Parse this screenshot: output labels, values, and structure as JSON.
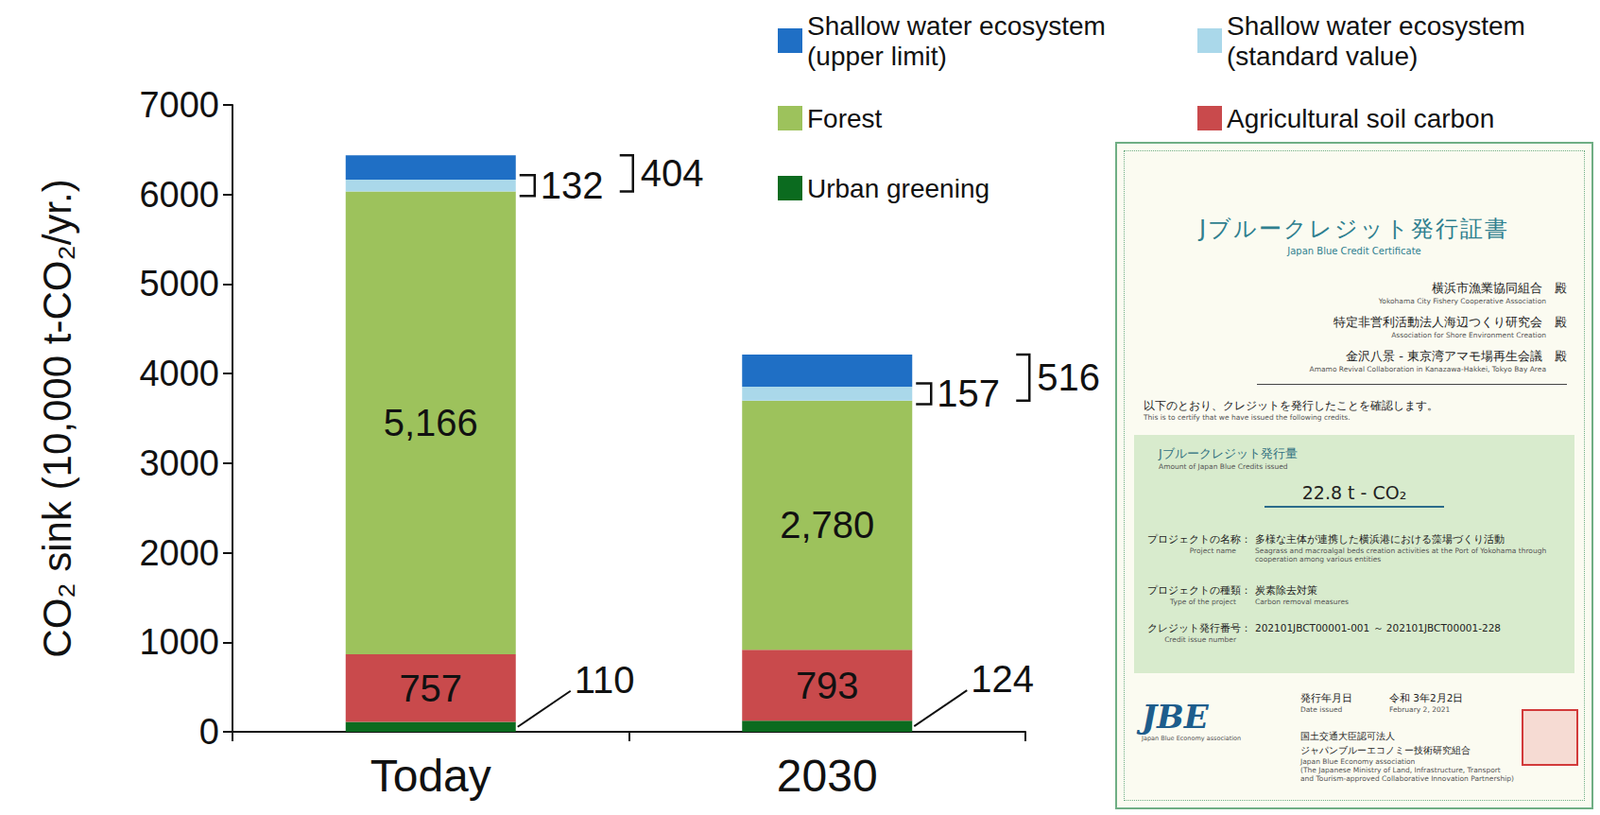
{
  "chart_data": {
    "type": "bar",
    "stacked": true,
    "data_labels": true,
    "legend": "top-right",
    "grid": false,
    "y_label": "CO₂ sink (10,000 t-CO₂/yr.)",
    "categories": [
      "Today",
      "2030"
    ],
    "ylim": [
      0,
      7000
    ],
    "yticks": [
      0,
      1000,
      2000,
      3000,
      4000,
      5000,
      6000,
      7000
    ],
    "series": [
      {
        "name": "Urban greening",
        "color": "#0b6b1f",
        "values": [
          110,
          124
        ],
        "data_labels": true
      },
      {
        "name": "Agricultural soil carbon",
        "color": "#c94a4c",
        "values": [
          757,
          793
        ],
        "data_labels": true
      },
      {
        "name": "Forest",
        "color": "#9dc25c",
        "values": [
          5166,
          2780
        ],
        "value_labels": [
          "5,166",
          "2,780"
        ],
        "data_labels": true
      },
      {
        "name": "Shallow water ecosystem (standard value)",
        "color": "#aad8ea",
        "values": [
          132,
          157
        ],
        "data_labels": true
      },
      {
        "name": "Shallow water ecosystem (upper limit)",
        "color": "#1f6fc5",
        "values": [
          272,
          359
        ],
        "data_labels": false
      }
    ],
    "annotations": [
      {
        "category": "Today",
        "text": "404"
      },
      {
        "category": "2030",
        "text": "516"
      }
    ]
  },
  "certificate": {
    "title": "Jブルークレジット発行証書",
    "title_en": "Japan Blue Credit Certificate",
    "recipients": [
      {
        "name": "横浜市漁業協同組合",
        "honorific": "殿",
        "name_en": "Yokohama City Fishery Cooperative Association"
      },
      {
        "name": "特定非営利活動法人海辺つくり研究会",
        "honorific": "殿",
        "name_en": "Association for Shore Environment Creation"
      },
      {
        "name": "金沢八景 - 東京湾アマモ場再生会議",
        "honorific": "殿",
        "name_en": "Amamo Revival Collaboration in Kanazawa-Hakkei, Tokyo Bay Area"
      }
    ],
    "statement": "以下のとおり、クレジットを発行したことを確認します。",
    "statement_en": "This is to certify that we have issued the following credits.",
    "amount": {
      "label": "Jブルークレジット発行量",
      "label_en": "Amount of Japan Blue Credits issued",
      "value": "22.8 t - CO₂"
    },
    "items": [
      {
        "label": "プロジェクトの名称：",
        "label_en": "Project name",
        "value": "多様な主体が連携した横浜港における藻場づくり活動",
        "value_en": "Seagrass and macroalgal beds creation activities at the Port of Yokohama through cooperation among various entities"
      },
      {
        "label": "プロジェクトの種類：",
        "label_en": "Type of the project",
        "value": "炭素除去対策",
        "value_en": "Carbon removal measures"
      },
      {
        "label": "クレジット発行番号：",
        "label_en": "Credit issue number",
        "value": "202101JBCT00001-001 ～ 202101JBCT00001-228"
      }
    ],
    "logo": "JBE",
    "logo_en": "Japan Blue Economy association",
    "date": {
      "label": "発行年月日",
      "label_en": "Date issued",
      "value": "令和 3年2月2日",
      "value_en": "February 2, 2021"
    },
    "issuer": [
      "国土交通大臣認可法人",
      "ジャパンブルーエコノミー技術研究組合",
      "Japan Blue Economy association",
      "(The Japanese Ministry of Land, Infrastructure, Transport and Tourism-approved Collaborative Innovation Partnership)"
    ]
  }
}
